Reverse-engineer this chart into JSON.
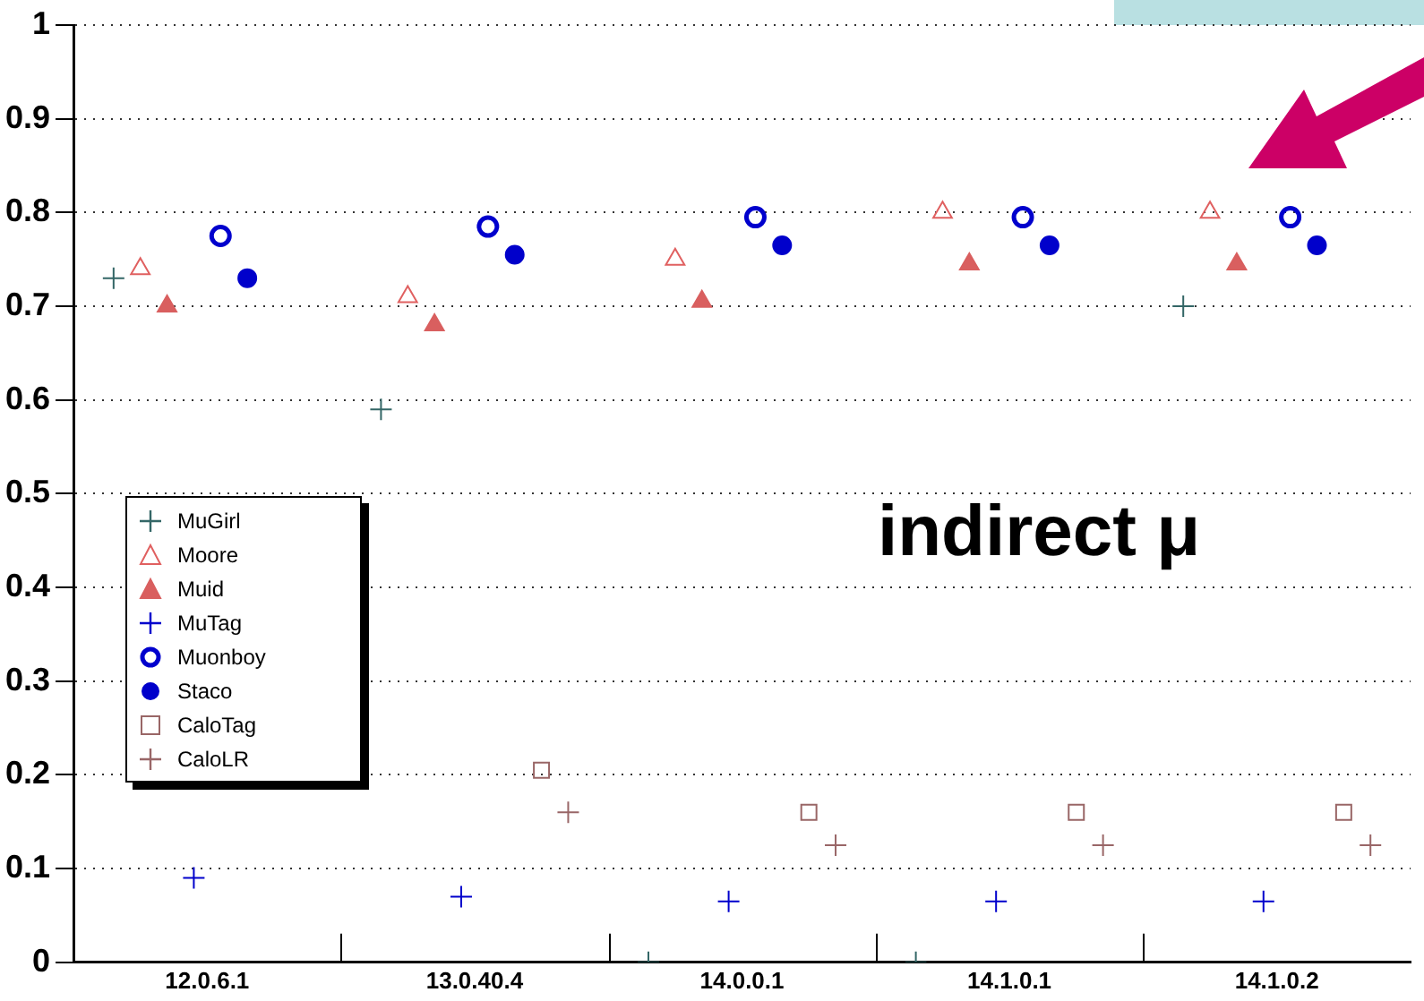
{
  "chart_data": {
    "type": "scatter",
    "categories": [
      "12.0.6.1",
      "13.0.40.4",
      "14.0.0.1",
      "14.1.0.1",
      "14.1.0.2"
    ],
    "ylim": [
      0,
      1
    ],
    "yticks": [
      0,
      0.1,
      0.2,
      0.3,
      0.4,
      0.5,
      0.6,
      0.7,
      0.8,
      0.9,
      1
    ],
    "grid": "y",
    "legend": "left",
    "annotations": [
      "indirect μ"
    ],
    "series": [
      {
        "name": "MuGirl",
        "color": "#336666",
        "marker": "cross",
        "values": [
          0.73,
          0.59,
          0,
          0,
          0.7
        ]
      },
      {
        "name": "Moore",
        "color": "#e06060",
        "marker": "triangle",
        "values": [
          0.74,
          0.71,
          0.75,
          0.8,
          0.8
        ]
      },
      {
        "name": "Muid",
        "color": "#d95f5f",
        "marker": "triangle",
        "values": [
          0.7,
          0.68,
          0.705,
          0.745,
          0.745
        ]
      },
      {
        "name": "MuTag",
        "color": "#0000cc",
        "marker": "cross",
        "values": [
          0.09,
          0.07,
          0.065,
          0.065,
          0.065
        ]
      },
      {
        "name": "Muonboy",
        "color": "#0000cd",
        "marker": "circle",
        "values": [
          0.775,
          0.785,
          0.795,
          0.795,
          0.795
        ]
      },
      {
        "name": "Staco",
        "color": "#0000cb",
        "marker": "circle",
        "values": [
          0.73,
          0.755,
          0.765,
          0.765,
          0.765
        ]
      },
      {
        "name": "CaloTag",
        "color": "#996666",
        "marker": "square",
        "values": [
          null,
          0.205,
          0.16,
          0.16,
          0.16
        ]
      },
      {
        "name": "CaloLR",
        "color": "#996667",
        "marker": "cross",
        "values": [
          null,
          0.16,
          0.125,
          0.125,
          0.125
        ]
      }
    ]
  }
}
